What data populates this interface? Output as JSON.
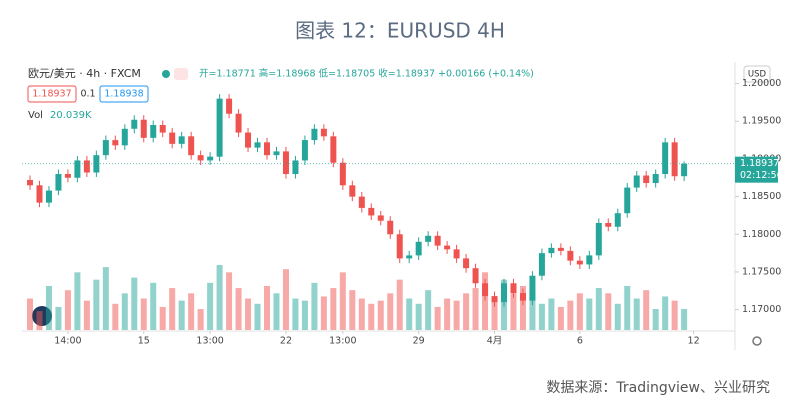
{
  "title": "图表 12：EURUSD 4H",
  "header": {
    "symbol": "欧元/美元 · 4h · FXCM",
    "ohlc_text": "开=1.18771 高=1.18968 低=1.18705 收=1.18937 +0.00166 (+0.14%)",
    "bid": "1.18937",
    "spread": "0.1",
    "ask": "1.18938",
    "volume_label": "Vol",
    "volume_value": "20.039K"
  },
  "currency": "USD",
  "price_tag": {
    "price": "1.18937",
    "countdown": "02:12:56"
  },
  "source": "数据来源：Tradingview、兴业研究",
  "chart_data": {
    "type": "candlestick",
    "up_color": "#26a69a",
    "down_color": "#ef5350",
    "ylim": [
      1.1673,
      1.2018
    ],
    "yticks": [
      {
        "value": 1.17,
        "label": "1.17000"
      },
      {
        "value": 1.175,
        "label": "1.17500"
      },
      {
        "value": 1.18,
        "label": "1.18000"
      },
      {
        "value": 1.185,
        "label": "1.18500"
      },
      {
        "value": 1.19,
        "label": "1.19000"
      },
      {
        "value": 1.195,
        "label": "1.19500"
      },
      {
        "value": 1.2,
        "label": "1.20000"
      }
    ],
    "xticks": [
      {
        "value": 4,
        "label": "14:00"
      },
      {
        "value": 12,
        "label": "15"
      },
      {
        "value": 19,
        "label": "13:00"
      },
      {
        "value": 27,
        "label": "22"
      },
      {
        "value": 33,
        "label": "13:00"
      },
      {
        "value": 41,
        "label": "29"
      },
      {
        "value": 49,
        "label": "4月"
      },
      {
        "value": 58,
        "label": "6"
      },
      {
        "value": 70,
        "label": "12"
      }
    ],
    "open": [
      1.1872,
      1.1865,
      1.1842,
      1.1858,
      1.188,
      1.1875,
      1.1898,
      1.1882,
      1.1905,
      1.1925,
      1.1918,
      1.194,
      1.1952,
      1.1928,
      1.1945,
      1.1935,
      1.192,
      1.193,
      1.1905,
      1.1898,
      1.1903,
      1.198,
      1.196,
      1.1935,
      1.1915,
      1.1922,
      1.1905,
      1.191,
      1.188,
      1.1898,
      1.1925,
      1.194,
      1.193,
      1.1895,
      1.1865,
      1.185,
      1.1835,
      1.1825,
      1.1818,
      1.18,
      1.1768,
      1.1772,
      1.179,
      1.1798,
      1.1785,
      1.178,
      1.1768,
      1.1755,
      1.1735,
      1.1718,
      1.171,
      1.1735,
      1.1722,
      1.1712,
      1.1745,
      1.1775,
      1.1782,
      1.1778,
      1.1765,
      1.176,
      1.1772,
      1.1815,
      1.181,
      1.1828,
      1.1862,
      1.1878,
      1.1868,
      1.188,
      1.1922,
      1.18771
    ],
    "high": [
      1.1878,
      1.1871,
      1.1864,
      1.1886,
      1.1886,
      1.1904,
      1.1904,
      1.1911,
      1.1931,
      1.1931,
      1.1946,
      1.1958,
      1.1958,
      1.1951,
      1.1951,
      1.1941,
      1.1936,
      1.1936,
      1.1911,
      1.1909,
      1.1986,
      1.1986,
      1.1966,
      1.1941,
      1.1928,
      1.1928,
      1.1916,
      1.1916,
      1.1904,
      1.1931,
      1.1946,
      1.1946,
      1.1936,
      1.1901,
      1.1871,
      1.1856,
      1.1841,
      1.1831,
      1.1824,
      1.1806,
      1.1778,
      1.1796,
      1.1804,
      1.1804,
      1.1791,
      1.1786,
      1.1774,
      1.1761,
      1.1741,
      1.1724,
      1.1741,
      1.1741,
      1.1728,
      1.1751,
      1.1781,
      1.1788,
      1.1788,
      1.1784,
      1.1771,
      1.1778,
      1.1821,
      1.1821,
      1.1834,
      1.1868,
      1.1884,
      1.1884,
      1.1886,
      1.1928,
      1.1928,
      1.18968
    ],
    "low": [
      1.1859,
      1.1836,
      1.1836,
      1.1852,
      1.1869,
      1.1869,
      1.1876,
      1.1876,
      1.1899,
      1.1912,
      1.1912,
      1.1934,
      1.1922,
      1.1922,
      1.1929,
      1.1914,
      1.1914,
      1.1899,
      1.1892,
      1.1892,
      1.1897,
      1.1954,
      1.1929,
      1.1909,
      1.1909,
      1.1899,
      1.1899,
      1.1874,
      1.1874,
      1.1892,
      1.1919,
      1.1924,
      1.1889,
      1.1859,
      1.1844,
      1.1829,
      1.1819,
      1.1812,
      1.1794,
      1.1762,
      1.1762,
      1.1766,
      1.1784,
      1.1779,
      1.1774,
      1.1762,
      1.1749,
      1.1729,
      1.1712,
      1.1704,
      1.1704,
      1.1716,
      1.1706,
      1.1706,
      1.1739,
      1.1769,
      1.1772,
      1.1759,
      1.1754,
      1.1754,
      1.1766,
      1.1804,
      1.1804,
      1.1822,
      1.1856,
      1.1862,
      1.1862,
      1.1874,
      1.1871,
      1.18705
    ],
    "close": [
      1.1865,
      1.1842,
      1.1858,
      1.188,
      1.1875,
      1.1898,
      1.1882,
      1.1905,
      1.1925,
      1.1918,
      1.194,
      1.1952,
      1.1928,
      1.1945,
      1.1935,
      1.192,
      1.193,
      1.1905,
      1.1898,
      1.1903,
      1.198,
      1.196,
      1.1935,
      1.1915,
      1.1922,
      1.1905,
      1.191,
      1.188,
      1.1898,
      1.1925,
      1.194,
      1.193,
      1.1895,
      1.1865,
      1.185,
      1.1835,
      1.1825,
      1.1818,
      1.18,
      1.1768,
      1.1772,
      1.179,
      1.1798,
      1.1785,
      1.178,
      1.1768,
      1.1755,
      1.1735,
      1.1718,
      1.171,
      1.1735,
      1.1722,
      1.1712,
      1.1745,
      1.1775,
      1.1782,
      1.1778,
      1.1765,
      1.176,
      1.1772,
      1.1815,
      1.181,
      1.1828,
      1.1862,
      1.1878,
      1.1868,
      1.188,
      1.1922,
      1.1877,
      1.18937
    ],
    "volume": [
      30,
      18,
      42,
      22,
      38,
      55,
      28,
      48,
      60,
      25,
      35,
      50,
      30,
      45,
      22,
      40,
      28,
      35,
      20,
      45,
      62,
      55,
      40,
      30,
      25,
      42,
      35,
      58,
      30,
      28,
      45,
      32,
      40,
      55,
      38,
      30,
      25,
      28,
      35,
      48,
      30,
      25,
      38,
      22,
      30,
      28,
      35,
      40,
      55,
      30,
      48,
      35,
      42,
      38,
      25,
      30,
      22,
      28,
      35,
      30,
      40,
      35,
      25,
      42,
      30,
      38,
      20,
      32,
      28,
      20.039
    ]
  }
}
